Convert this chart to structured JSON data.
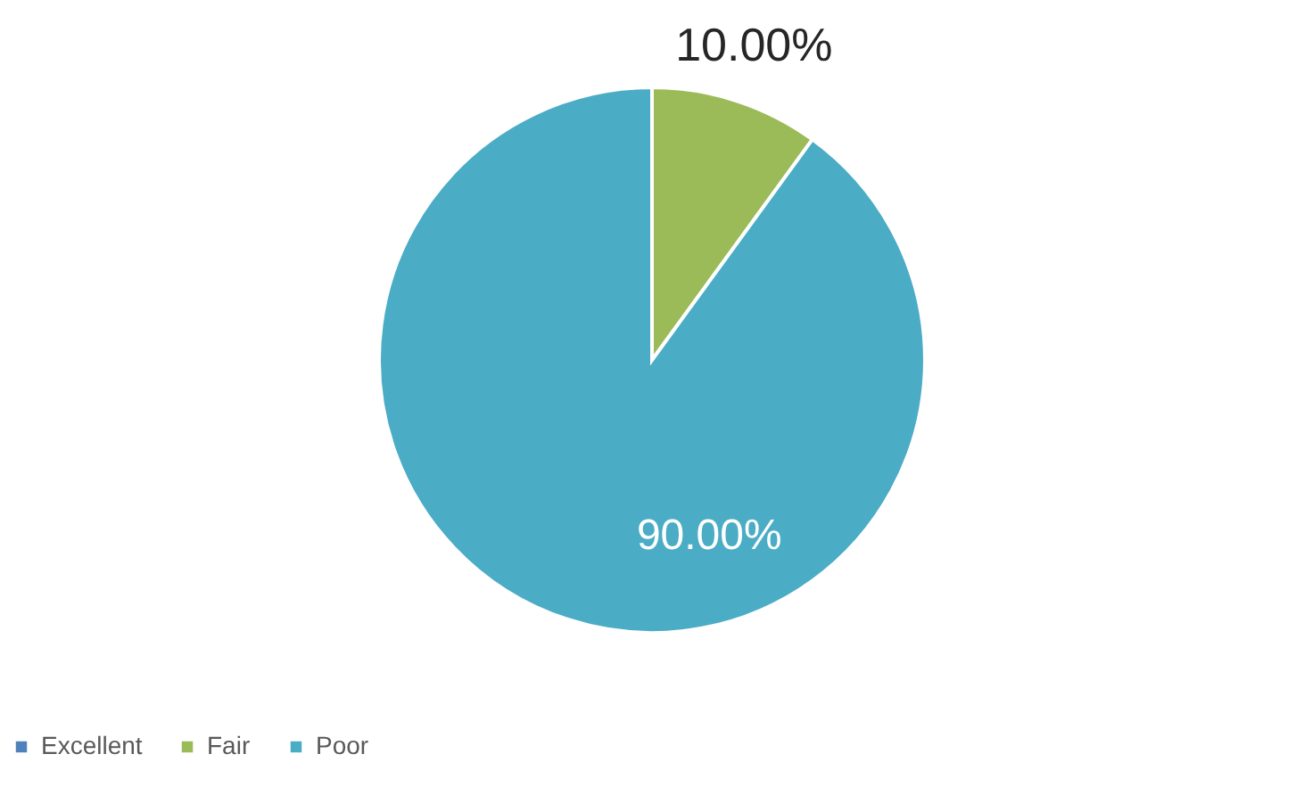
{
  "chart_data": {
    "type": "pie",
    "categories": [
      "Excellent",
      "Fair",
      "Poor"
    ],
    "values": [
      0,
      10,
      90
    ],
    "colors": [
      "#4f81bd",
      "#9bbb59",
      "#4bacc6"
    ],
    "value_labels": [
      null,
      "10.00%",
      "90.00%"
    ],
    "legend": "bottom"
  }
}
